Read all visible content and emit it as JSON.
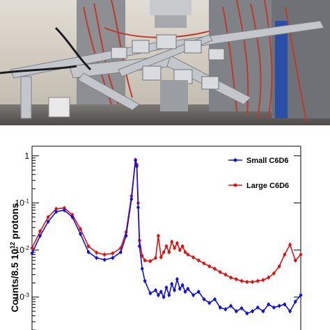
{
  "photo": {
    "description_icon": "detector-setup-photo-icon",
    "colors": {
      "wall": "#d8d2c8",
      "frame": "#b4b8bd",
      "cable_red": "#c0392b",
      "support_blue": "#2a4fa8"
    }
  },
  "chart_data": {
    "type": "line",
    "title": "",
    "xlabel": "",
    "ylabel": "Counts/8.5 10^12 protons",
    "ylabel_parts": {
      "pre": "Counts/8.5 10",
      "sup": "12",
      "post": " protons"
    },
    "yscale": "log",
    "ylim": [
      0.0002,
      1.6
    ],
    "xlim": [
      0,
      1
    ],
    "grid": false,
    "legend_position": "top-right",
    "y_ticks": [
      {
        "value": 1,
        "label": "1"
      },
      {
        "value": 0.1,
        "label": "10",
        "sup": "-1"
      },
      {
        "value": 0.01,
        "label": "10",
        "sup": "-2"
      },
      {
        "value": 0.001,
        "label": "10",
        "sup": "-3"
      }
    ],
    "series": [
      {
        "name": "Small C6D6",
        "color": "#1010e0",
        "x": [
          0.0,
          0.03,
          0.06,
          0.09,
          0.12,
          0.15,
          0.18,
          0.21,
          0.24,
          0.27,
          0.3,
          0.33,
          0.35,
          0.37,
          0.385,
          0.39,
          0.395,
          0.4,
          0.41,
          0.42,
          0.44,
          0.46,
          0.47,
          0.48,
          0.49,
          0.5,
          0.51,
          0.52,
          0.53,
          0.54,
          0.55,
          0.56,
          0.57,
          0.58,
          0.6,
          0.62,
          0.64,
          0.66,
          0.68,
          0.7,
          0.72,
          0.74,
          0.76,
          0.78,
          0.8,
          0.82,
          0.84,
          0.86,
          0.88,
          0.9,
          0.92,
          0.94,
          0.96,
          0.98,
          1.0
        ],
        "values": [
          0.0085,
          0.02,
          0.04,
          0.065,
          0.07,
          0.05,
          0.022,
          0.009,
          0.0068,
          0.0062,
          0.0068,
          0.009,
          0.02,
          0.12,
          0.8,
          0.6,
          0.08,
          0.012,
          0.004,
          0.0022,
          0.0012,
          0.0014,
          0.0011,
          0.0013,
          0.001,
          0.0016,
          0.0011,
          0.0019,
          0.0014,
          0.0024,
          0.0015,
          0.0018,
          0.0013,
          0.0015,
          0.0011,
          0.0013,
          0.0009,
          0.00075,
          0.0009,
          0.0006,
          0.00055,
          0.00065,
          0.0005,
          0.00058,
          0.00045,
          0.0005,
          0.0006,
          0.0005,
          0.0007,
          0.0006,
          0.00065,
          0.0007,
          0.0005,
          0.0008,
          0.0011
        ]
      },
      {
        "name": "Large C6D6",
        "color": "#e01010",
        "x": [
          0.0,
          0.03,
          0.06,
          0.09,
          0.12,
          0.15,
          0.18,
          0.21,
          0.24,
          0.27,
          0.3,
          0.33,
          0.35,
          0.37,
          0.385,
          0.39,
          0.395,
          0.4,
          0.41,
          0.42,
          0.44,
          0.46,
          0.47,
          0.48,
          0.49,
          0.5,
          0.51,
          0.52,
          0.53,
          0.54,
          0.55,
          0.56,
          0.57,
          0.58,
          0.6,
          0.62,
          0.64,
          0.66,
          0.68,
          0.7,
          0.72,
          0.74,
          0.76,
          0.78,
          0.8,
          0.82,
          0.84,
          0.86,
          0.88,
          0.9,
          0.92,
          0.94,
          0.96,
          0.98,
          1.0
        ],
        "values": [
          0.011,
          0.025,
          0.05,
          0.075,
          0.078,
          0.056,
          0.028,
          0.012,
          0.0088,
          0.008,
          0.0085,
          0.011,
          0.024,
          0.14,
          0.82,
          0.65,
          0.1,
          0.016,
          0.0075,
          0.006,
          0.0058,
          0.0068,
          0.02,
          0.007,
          0.009,
          0.012,
          0.009,
          0.015,
          0.011,
          0.014,
          0.01,
          0.012,
          0.009,
          0.008,
          0.007,
          0.006,
          0.0052,
          0.0045,
          0.004,
          0.0034,
          0.003,
          0.0026,
          0.0024,
          0.0022,
          0.0021,
          0.0021,
          0.0022,
          0.0023,
          0.0026,
          0.0032,
          0.0045,
          0.008,
          0.013,
          0.006,
          0.008
        ]
      }
    ]
  }
}
